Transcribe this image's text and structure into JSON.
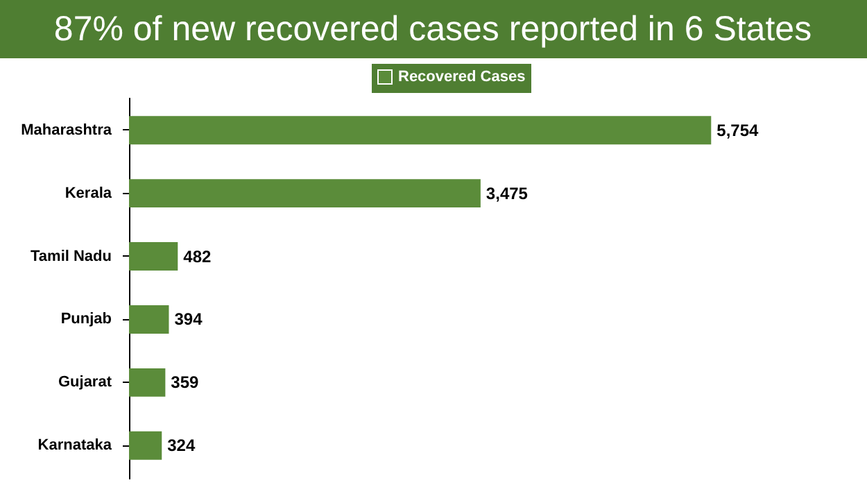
{
  "chart_data": {
    "type": "bar",
    "orientation": "horizontal",
    "title": "87% of new recovered cases reported in 6 States",
    "categories": [
      "Maharashtra",
      "Kerala",
      "Tamil Nadu",
      "Punjab",
      "Gujarat",
      "Karnataka"
    ],
    "series": [
      {
        "name": "Recovered Cases",
        "color": "#5b8c3a",
        "values": [
          5754,
          3475,
          482,
          394,
          359,
          324
        ],
        "value_labels": [
          "5,754",
          "3,475",
          "482",
          "394",
          "359",
          "324"
        ]
      }
    ],
    "legend": "top",
    "grid": false
  }
}
